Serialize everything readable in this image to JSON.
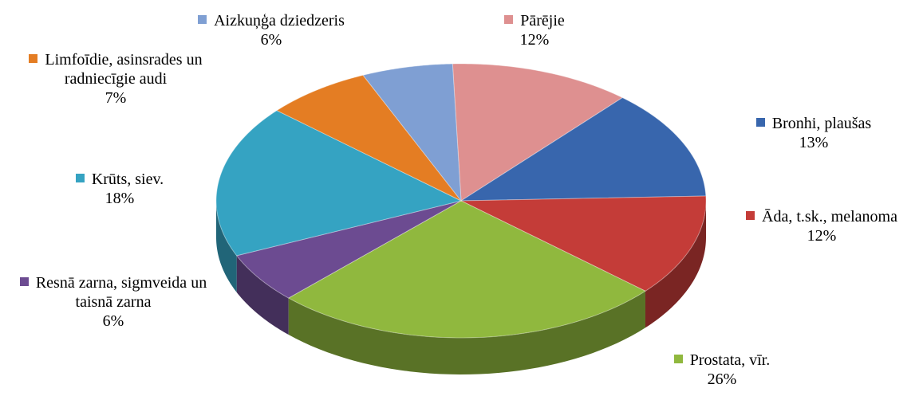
{
  "chart_data": {
    "type": "pie",
    "three_d": true,
    "categories": [
      "Pārējie",
      "Bronhi, plaušas",
      "Āda, t.sk., melanoma",
      "Prostata, vīr.",
      "Resnā zarna, sigmveida un taisnā zarna",
      "Krūts, siev.",
      "Limfoīdie, asinsrades un radniecīgie audi",
      "Aizkuņģa dziedzeris"
    ],
    "values": [
      12,
      13,
      12,
      26,
      6,
      18,
      7,
      6
    ],
    "value_labels": [
      "12%",
      "13%",
      "12%",
      "26%",
      "6%",
      "18%",
      "7%",
      "6%"
    ],
    "colors": [
      "#de9090",
      "#3866ad",
      "#c43c38",
      "#90b83e",
      "#6c4b91",
      "#35a3c2",
      "#e47d23",
      "#7f9fd3"
    ]
  }
}
